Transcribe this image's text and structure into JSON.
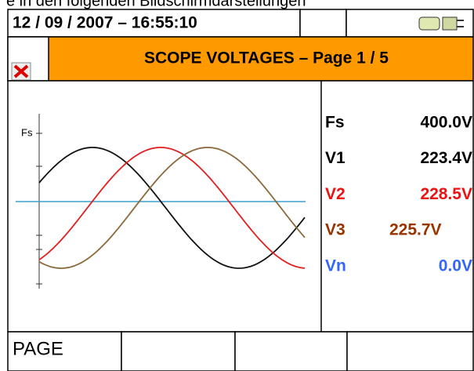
{
  "notice": "e in den folgenden Bildschirmdarstellungen",
  "header": {
    "datetime": "12 / 09 / 2007 – 16:55:10",
    "title": "SCOPE VOLTAGES – Page 1 / 5"
  },
  "graph": {
    "axis_label": "Fs"
  },
  "readings": [
    {
      "label": "Fs",
      "value": "400.0V",
      "color": "#000000"
    },
    {
      "label": "V1",
      "value": "223.4V",
      "color": "#000000"
    },
    {
      "label": "V2",
      "value": "228.5V",
      "color": "#ee1111"
    },
    {
      "label": "V3",
      "value": "225.7V",
      "color": "#993300"
    },
    {
      "label": "Vn",
      "value": "0.0V",
      "color": "#3366ff"
    }
  ],
  "footer": {
    "buttons": [
      "PAGE"
    ]
  }
}
